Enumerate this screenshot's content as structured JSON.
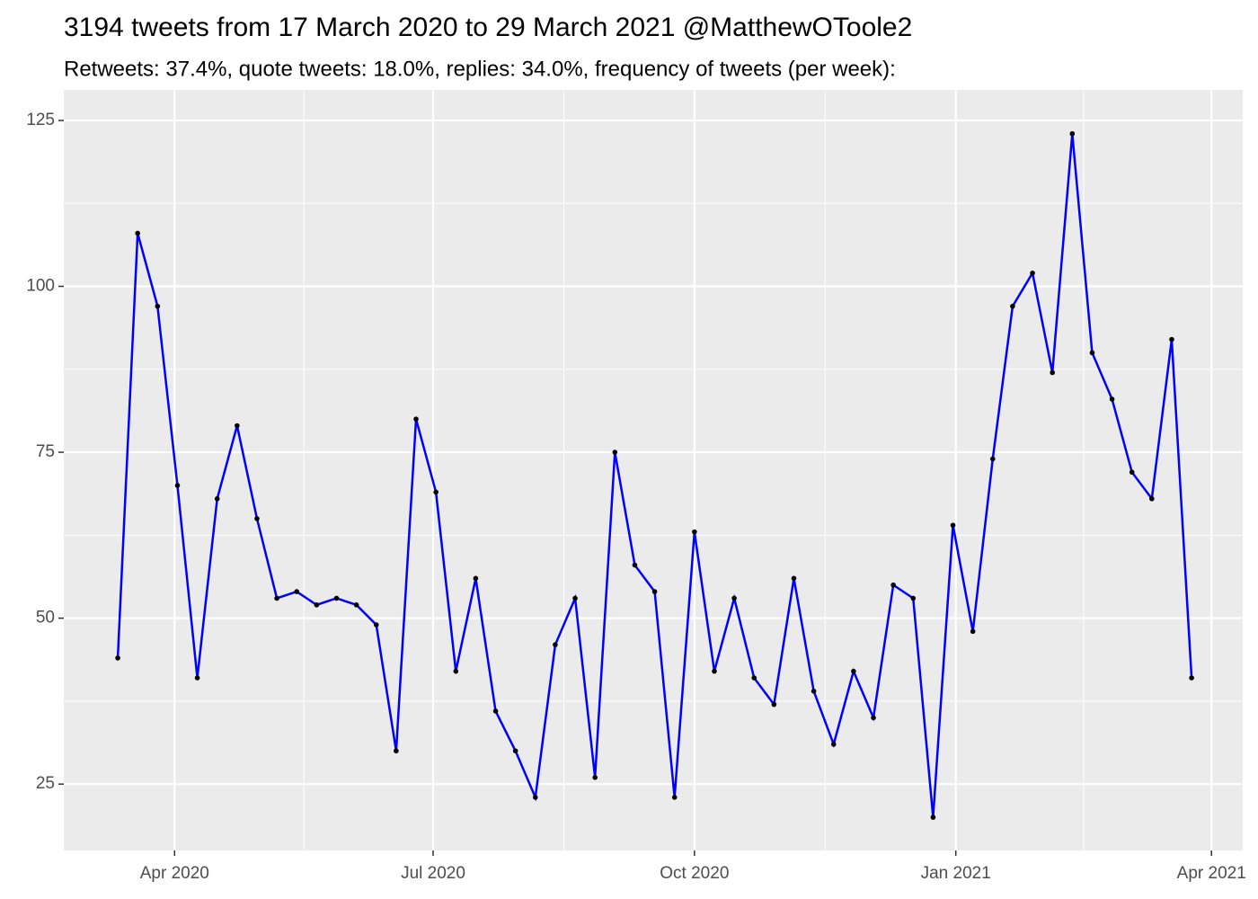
{
  "chart_data": {
    "type": "line",
    "title": "3194 tweets from 17 March 2020 to 29 March 2021 @MatthewOToole2",
    "subtitle": "Retweets: 37.4%, quote tweets: 18.0%, replies: 34.0%, frequency of tweets (per week):",
    "x": [
      "2020-03-12",
      "2020-03-19",
      "2020-03-26",
      "2020-04-02",
      "2020-04-09",
      "2020-04-16",
      "2020-04-23",
      "2020-04-30",
      "2020-05-07",
      "2020-05-14",
      "2020-05-21",
      "2020-05-28",
      "2020-06-04",
      "2020-06-11",
      "2020-06-18",
      "2020-06-25",
      "2020-07-02",
      "2020-07-09",
      "2020-07-16",
      "2020-07-23",
      "2020-07-30",
      "2020-08-06",
      "2020-08-13",
      "2020-08-20",
      "2020-08-27",
      "2020-09-03",
      "2020-09-10",
      "2020-09-17",
      "2020-09-24",
      "2020-10-01",
      "2020-10-08",
      "2020-10-15",
      "2020-10-22",
      "2020-10-29",
      "2020-11-05",
      "2020-11-12",
      "2020-11-19",
      "2020-11-26",
      "2020-12-03",
      "2020-12-10",
      "2020-12-17",
      "2020-12-24",
      "2020-12-31",
      "2021-01-07",
      "2021-01-14",
      "2021-01-21",
      "2021-01-28",
      "2021-02-04",
      "2021-02-11",
      "2021-02-18",
      "2021-02-25",
      "2021-03-04",
      "2021-03-11",
      "2021-03-18",
      "2021-03-25"
    ],
    "series": [
      {
        "color": "#0000ff",
        "point_color": "#000000",
        "values": [
          44,
          108,
          97,
          70,
          41,
          68,
          79,
          65,
          53,
          54,
          52,
          53,
          52,
          49,
          30,
          80,
          69,
          42,
          56,
          36,
          30,
          23,
          46,
          53,
          26,
          75,
          58,
          54,
          23,
          63,
          42,
          53,
          41,
          37,
          56,
          39,
          31,
          42,
          35,
          55,
          53,
          20,
          64,
          48,
          74,
          97,
          102,
          87,
          123,
          90,
          83,
          72,
          68,
          92,
          41
        ]
      }
    ],
    "xlim": [
      "2020-02-22",
      "2021-04-12"
    ],
    "xticks": [
      {
        "value": "2020-04-01",
        "label": "Apr 2020"
      },
      {
        "value": "2020-07-01",
        "label": "Jul 2020"
      },
      {
        "value": "2020-10-01",
        "label": "Oct 2020"
      },
      {
        "value": "2021-01-01",
        "label": "Jan 2021"
      },
      {
        "value": "2021-04-01",
        "label": "Apr 2021"
      }
    ],
    "ylim": [
      15,
      129.6
    ],
    "yticks": [
      25,
      50,
      75,
      100,
      125
    ],
    "grid": true
  }
}
